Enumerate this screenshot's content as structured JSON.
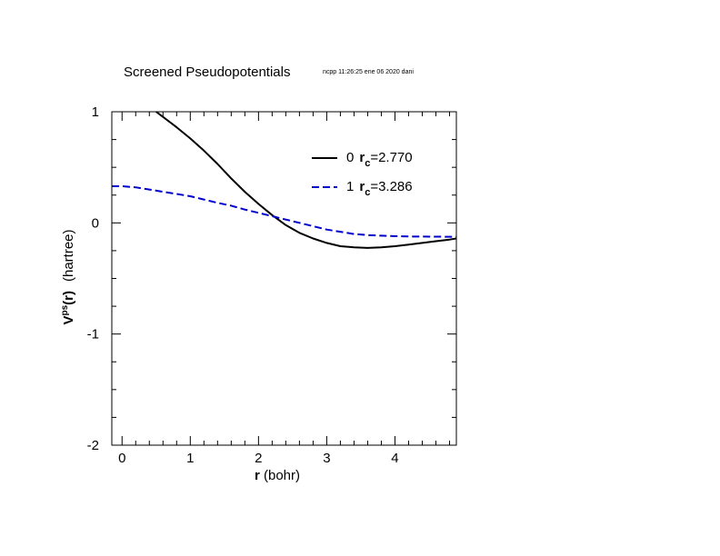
{
  "chart_data": {
    "type": "line",
    "title": "Screened Pseudopotentials",
    "subtitle": "ncpp 11:26:25 ene 06 2020 dani",
    "xlabel": {
      "bold": "r",
      "rest": " (bohr)"
    },
    "ylabel": {
      "base": "V",
      "sup": "ps",
      "arg": "(r)",
      "unit": "(hartree)"
    },
    "xlim": [
      -0.15,
      4.9
    ],
    "ylim": [
      -2,
      1
    ],
    "xticks": [
      0,
      1,
      2,
      3,
      4
    ],
    "xtick_labels": [
      "0",
      "1",
      "2",
      "3",
      "4"
    ],
    "yticks": [
      1,
      0,
      -1,
      -2
    ],
    "ytick_labels": [
      "1",
      "0",
      "-1",
      "-2"
    ],
    "legend_position": "top-right",
    "series": [
      {
        "name": "0",
        "rc_label": "r",
        "rc_sub": "c",
        "rc_value": "=2.770",
        "color": "#000000",
        "dash": "solid",
        "x": [
          0.5,
          0.8,
          1.0,
          1.2,
          1.4,
          1.6,
          1.8,
          2.0,
          2.2,
          2.4,
          2.6,
          2.8,
          3.0,
          3.2,
          3.4,
          3.6,
          3.8,
          4.0,
          4.2,
          4.4,
          4.6,
          4.8,
          4.9
        ],
        "y": [
          1.0,
          0.86,
          0.76,
          0.65,
          0.53,
          0.4,
          0.28,
          0.17,
          0.07,
          -0.02,
          -0.09,
          -0.14,
          -0.18,
          -0.21,
          -0.22,
          -0.225,
          -0.22,
          -0.21,
          -0.195,
          -0.18,
          -0.165,
          -0.15,
          -0.14
        ]
      },
      {
        "name": "1",
        "rc_label": "r",
        "rc_sub": "c",
        "rc_value": "=3.286",
        "color": "#0000cc",
        "dash": "dashed",
        "x": [
          -0.15,
          0.0,
          0.2,
          0.4,
          0.6,
          0.8,
          1.0,
          1.2,
          1.4,
          1.6,
          1.8,
          2.0,
          2.2,
          2.4,
          2.6,
          2.8,
          3.0,
          3.2,
          3.4,
          3.6,
          3.8,
          4.0,
          4.2,
          4.4,
          4.6,
          4.8,
          4.9
        ],
        "y": [
          0.33,
          0.33,
          0.32,
          0.3,
          0.28,
          0.26,
          0.24,
          0.21,
          0.18,
          0.155,
          0.12,
          0.09,
          0.06,
          0.03,
          0.0,
          -0.03,
          -0.06,
          -0.08,
          -0.1,
          -0.11,
          -0.115,
          -0.12,
          -0.122,
          -0.123,
          -0.124,
          -0.125,
          -0.125
        ]
      }
    ]
  }
}
